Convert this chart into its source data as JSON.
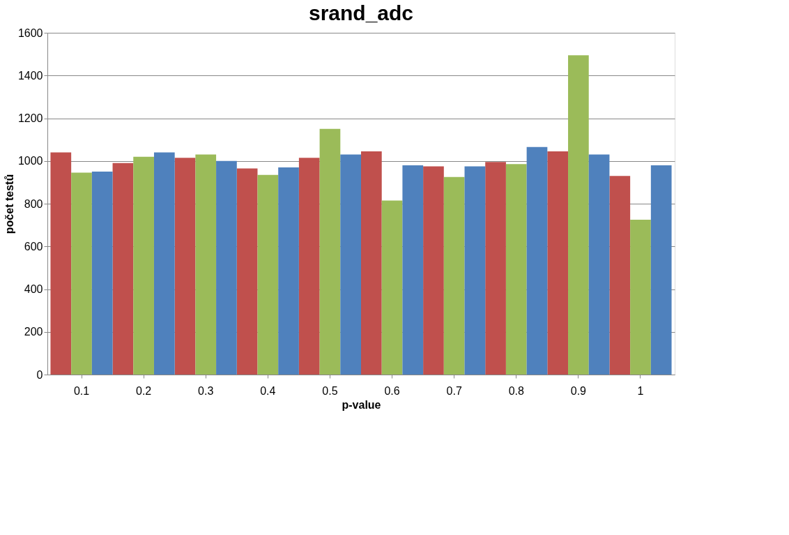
{
  "chart_data": {
    "type": "bar",
    "title": "srand_adc",
    "xlabel": "p-value",
    "ylabel": "počet testů",
    "categories": [
      "0.1",
      "0.2",
      "0.3",
      "0.4",
      "0.5",
      "0.6",
      "0.7",
      "0.8",
      "0.9",
      "1"
    ],
    "series": [
      {
        "color": "#c0504d",
        "values": [
          1040,
          990,
          1015,
          965,
          1015,
          1045,
          975,
          995,
          1045,
          930
        ]
      },
      {
        "color": "#9bbb59",
        "values": [
          945,
          1020,
          1030,
          935,
          1150,
          815,
          925,
          985,
          1495,
          725
        ]
      },
      {
        "color": "#4f81bd",
        "values": [
          950,
          1040,
          1000,
          970,
          1030,
          980,
          975,
          1065,
          1030,
          980
        ]
      }
    ],
    "ylim": [
      0,
      1600
    ],
    "yticks": [
      0,
      200,
      400,
      600,
      800,
      1000,
      1200,
      1400,
      1600
    ],
    "grid": "y"
  }
}
